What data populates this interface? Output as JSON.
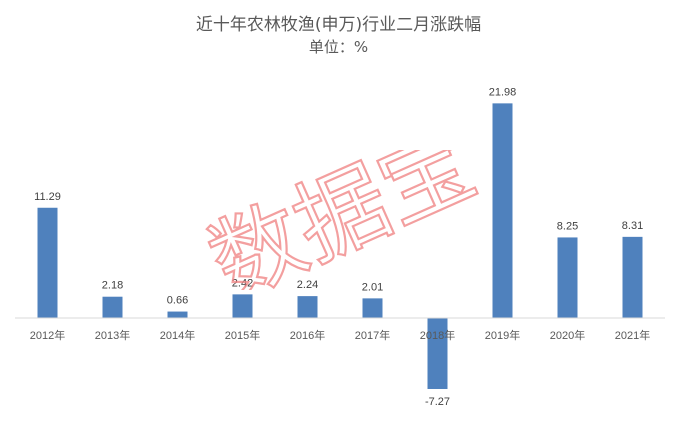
{
  "chart_data": {
    "type": "bar",
    "title": "近十年农林牧渔(申万)行业二月涨跌幅",
    "subtitle": "单位：%",
    "categories": [
      "2012年",
      "2013年",
      "2014年",
      "2015年",
      "2016年",
      "2017年",
      "2018年",
      "2019年",
      "2020年",
      "2021年"
    ],
    "series": [
      {
        "values": [
          11.29,
          2.18,
          0.66,
          2.42,
          2.24,
          2.01,
          -7.27,
          21.98,
          8.25,
          8.31
        ]
      }
    ],
    "value_labels": [
      "11.29",
      "2.18",
      "0.66",
      "2.42",
      "2.24",
      "2.01",
      "-7.27",
      "21.98",
      "8.25",
      "8.31"
    ],
    "ylim": [
      -8,
      24
    ],
    "grid": false,
    "legend": "none",
    "bar_color": "#4f81bd"
  },
  "watermark": {
    "text": "数据宝",
    "color": "#f08080"
  }
}
